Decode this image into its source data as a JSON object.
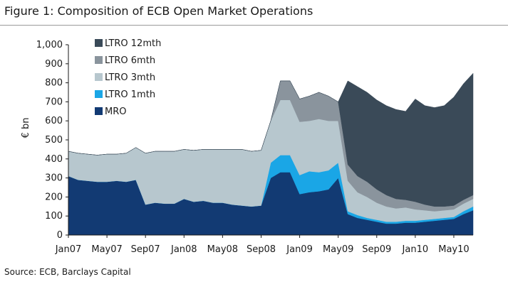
{
  "title": "Figure 1: Composition of ECB Open Market Operations",
  "source": "Source: ECB, Barclays Capital",
  "chart_data": {
    "type": "area",
    "stacked": true,
    "title": "Figure 1: Composition of ECB Open Market Operations",
    "xlabel": "",
    "ylabel": "€ bn",
    "ylim": [
      0,
      1000
    ],
    "yticks": [
      0,
      100,
      200,
      300,
      400,
      500,
      600,
      700,
      800,
      900,
      1000
    ],
    "ytick_labels": [
      "0",
      "100",
      "200",
      "300",
      "400",
      "500",
      "600",
      "700",
      "800",
      "900",
      "1,000"
    ],
    "x_start": "Jan07",
    "x_end": "Jul10",
    "x_ticks": [
      "Jan07",
      "May07",
      "Sep07",
      "Jan08",
      "May08",
      "Sep08",
      "Jan09",
      "May09",
      "Sep09",
      "Jan10",
      "May10"
    ],
    "grid": false,
    "legend_position": "top-left",
    "x": [
      "Jan07",
      "Feb07",
      "Mar07",
      "Apr07",
      "May07",
      "Jun07",
      "Jul07",
      "Aug07",
      "Sep07",
      "Oct07",
      "Nov07",
      "Dec07",
      "Jan08",
      "Feb08",
      "Mar08",
      "Apr08",
      "May08",
      "Jun08",
      "Jul08",
      "Aug08",
      "Sep08",
      "Oct08",
      "Nov08",
      "Dec08",
      "Jan09",
      "Feb09",
      "Mar09",
      "Apr09",
      "May09",
      "Jun09",
      "Jul09",
      "Aug09",
      "Sep09",
      "Oct09",
      "Nov09",
      "Dec09",
      "Jan10",
      "Feb10",
      "Mar10",
      "Apr10",
      "May10",
      "Jun10",
      "Jul10"
    ],
    "series": [
      {
        "name": "MRO",
        "color": "#123a73",
        "values": [
          310,
          290,
          285,
          280,
          280,
          285,
          280,
          290,
          160,
          170,
          165,
          165,
          190,
          175,
          180,
          170,
          170,
          160,
          155,
          150,
          155,
          300,
          330,
          330,
          215,
          225,
          230,
          240,
          300,
          110,
          90,
          80,
          70,
          60,
          60,
          65,
          65,
          70,
          75,
          80,
          85,
          110,
          130
        ]
      },
      {
        "name": "LTRO 1mth",
        "color": "#1aa6e6",
        "values": [
          0,
          0,
          0,
          0,
          0,
          0,
          0,
          0,
          0,
          0,
          0,
          0,
          0,
          0,
          0,
          0,
          0,
          0,
          0,
          0,
          0,
          80,
          90,
          90,
          100,
          110,
          100,
          100,
          80,
          15,
          15,
          10,
          10,
          10,
          10,
          10,
          10,
          10,
          10,
          10,
          10,
          15,
          20
        ]
      },
      {
        "name": "LTRO 3mth",
        "color": "#b7c7ce",
        "values": [
          130,
          140,
          140,
          140,
          145,
          140,
          150,
          170,
          270,
          270,
          275,
          275,
          260,
          270,
          270,
          280,
          280,
          290,
          295,
          290,
          290,
          220,
          290,
          290,
          280,
          265,
          280,
          260,
          220,
          160,
          120,
          110,
          90,
          80,
          70,
          70,
          60,
          50,
          40,
          40,
          40,
          40,
          40
        ]
      },
      {
        "name": "LTRO 6mth",
        "color": "#8a949d",
        "values": [
          0,
          0,
          0,
          0,
          0,
          0,
          0,
          0,
          0,
          0,
          0,
          0,
          0,
          0,
          0,
          0,
          0,
          0,
          0,
          0,
          0,
          0,
          100,
          100,
          120,
          130,
          140,
          130,
          100,
          85,
          85,
          80,
          70,
          60,
          50,
          40,
          40,
          30,
          25,
          20,
          20,
          20,
          20
        ]
      },
      {
        "name": "LTRO 12mth",
        "color": "#3a4a58",
        "values": [
          0,
          0,
          0,
          0,
          0,
          0,
          0,
          0,
          0,
          0,
          0,
          0,
          0,
          0,
          0,
          0,
          0,
          0,
          0,
          0,
          0,
          0,
          0,
          0,
          0,
          0,
          0,
          0,
          0,
          440,
          470,
          470,
          470,
          470,
          470,
          465,
          540,
          520,
          520,
          530,
          570,
          610,
          640
        ]
      }
    ],
    "legend_order": [
      "LTRO 12mth",
      "LTRO 6mth",
      "LTRO 3mth",
      "LTRO 1mth",
      "MRO"
    ],
    "legend_labels": [
      "LTRO 12mth",
      "LTRO 6mth",
      " LTRO 3mth",
      "LTRO 1mth",
      "MRO"
    ]
  }
}
